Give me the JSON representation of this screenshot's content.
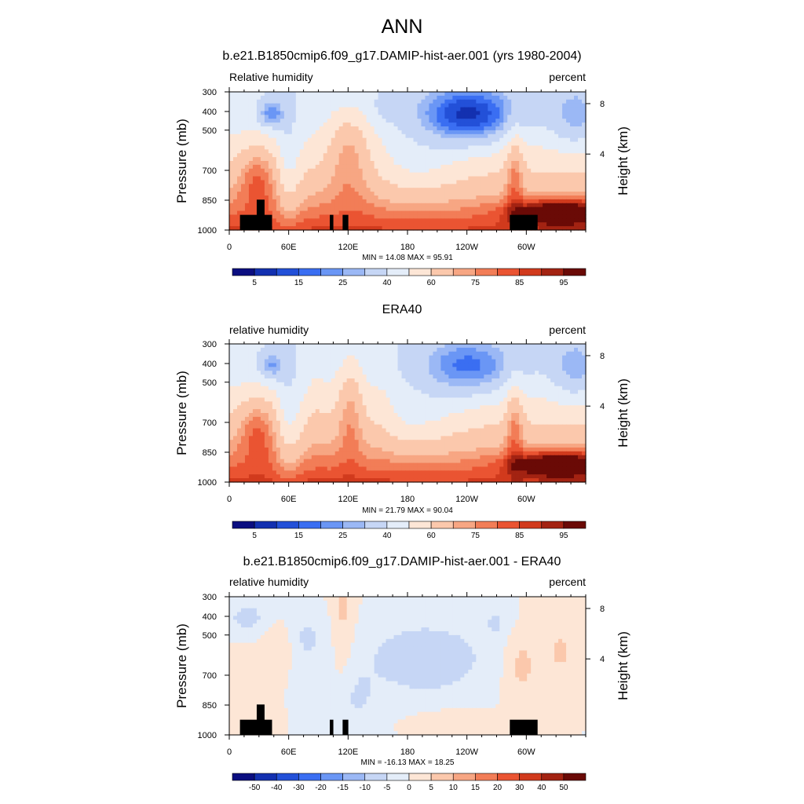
{
  "main_title": "ANN",
  "chart_data": [
    {
      "type": "contour",
      "title": "b.e21.B1850cmip6.f09_g17.DAMIP-hist-aer.001 (yrs 1980-2004)",
      "left_label": "Relative humidity",
      "right_label": "percent",
      "ylabel": "Pressure (mb)",
      "ylabel_right": "Height (km)",
      "y_ticks": [
        "300",
        "400",
        "500",
        "700",
        "850",
        "1000"
      ],
      "y_right_ticks": [
        "8",
        "4"
      ],
      "x_ticks": [
        "0",
        "60E",
        "120E",
        "180",
        "120W",
        "60W"
      ],
      "stats": "MIN = 14.08  MAX = 95.91",
      "colorbar_labels": [
        "5",
        "15",
        "25",
        "40",
        "60",
        "75",
        "85",
        "95"
      ]
    },
    {
      "type": "contour",
      "title": "ERA40",
      "left_label": "relative humidity",
      "right_label": "percent",
      "ylabel": "Pressure (mb)",
      "ylabel_right": "Height (km)",
      "y_ticks": [
        "300",
        "400",
        "500",
        "700",
        "850",
        "1000"
      ],
      "y_right_ticks": [
        "8",
        "4"
      ],
      "x_ticks": [
        "0",
        "60E",
        "120E",
        "180",
        "120W",
        "60W"
      ],
      "stats": "MIN = 21.79  MAX = 90.04",
      "colorbar_labels": [
        "5",
        "15",
        "25",
        "40",
        "60",
        "75",
        "85",
        "95"
      ]
    },
    {
      "type": "contour",
      "title": "b.e21.B1850cmip6.f09_g17.DAMIP-hist-aer.001 - ERA40",
      "left_label": "relative humidity",
      "right_label": "percent",
      "ylabel": "Pressure (mb)",
      "ylabel_right": "Height (km)",
      "y_ticks": [
        "300",
        "400",
        "500",
        "700",
        "850",
        "1000"
      ],
      "y_right_ticks": [
        "8",
        "4"
      ],
      "x_ticks": [
        "0",
        "60E",
        "120E",
        "180",
        "120W",
        "60W"
      ],
      "stats": "MIN = -16.13  MAX = 18.25",
      "colorbar_labels": [
        "-50",
        "-40",
        "-30",
        "-20",
        "-15",
        "-10",
        "-5",
        "0",
        "5",
        "10",
        "15",
        "20",
        "30",
        "40",
        "50"
      ]
    }
  ],
  "colors": {
    "abs_palette": [
      "#0b0e80",
      "#1330b0",
      "#2350d8",
      "#3a6ef2",
      "#6a96f5",
      "#9bb8f5",
      "#c6d6f5",
      "#e4edf9",
      "#fde6d6",
      "#fbc8ac",
      "#f7a683",
      "#f27d57",
      "#ea5432",
      "#d13a1d",
      "#a32312",
      "#6a0a06"
    ],
    "diff_palette": [
      "#0b0e80",
      "#1330b0",
      "#2350d8",
      "#3a6ef2",
      "#6a96f5",
      "#9bb8f5",
      "#c6d6f5",
      "#e4edf9",
      "#fde6d6",
      "#fbc8ac",
      "#f7a683",
      "#f27d57",
      "#ea5432",
      "#d13a1d",
      "#a32312",
      "#6a0a06"
    ],
    "missing": "#000000"
  }
}
